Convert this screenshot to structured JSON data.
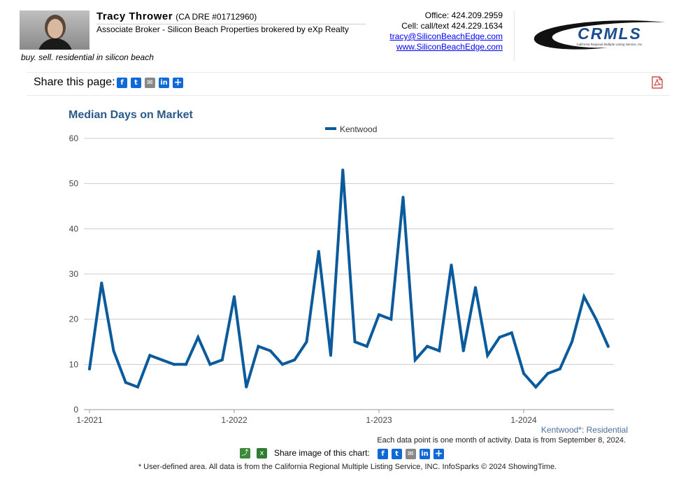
{
  "agent": {
    "name": "Tracy Thrower",
    "license": "(CA DRE #01712960)",
    "title": "Associate Broker - Silicon Beach Properties brokered by eXp Realty",
    "tagline": "buy. sell. residential in silicon beach",
    "office": "Office: 424.209.2959",
    "cell": "Cell: call/text 424.229.1634",
    "email": "tracy@SiliconBeachEdge.com",
    "website": "www.SiliconBeachEdge.com"
  },
  "logo": {
    "text": "CRMLS",
    "subtext": "California Regional Multiple Listing Service, Inc.",
    "color": "#1a4d8f"
  },
  "share": {
    "label": "Share this page:",
    "icons": [
      "facebook-icon",
      "twitter-icon",
      "email-icon",
      "linkedin-icon",
      "share-plus-icon"
    ]
  },
  "chart_data": {
    "type": "line",
    "title": "Median Days on Market",
    "series": [
      {
        "name": "Kentwood",
        "color": "#0a5a9c",
        "values": [
          9,
          28,
          13,
          6,
          5,
          12,
          11,
          10,
          10,
          16,
          10,
          11,
          25,
          5,
          14,
          13,
          10,
          11,
          15,
          35,
          12,
          53,
          15,
          14,
          21,
          20,
          47,
          11,
          14,
          13,
          32,
          13,
          27,
          12,
          16,
          17,
          8,
          5,
          8,
          9,
          15,
          25,
          20,
          14
        ]
      }
    ],
    "x_start": "1-2021",
    "x_ticks": [
      "1-2021",
      "1-2022",
      "1-2023",
      "1-2024"
    ],
    "y_ticks": [
      0,
      10,
      20,
      30,
      40,
      50,
      60
    ],
    "ylim": [
      0,
      60
    ],
    "grid": true,
    "legend_position": "top-center"
  },
  "footer": {
    "area_label": "Kentwood*: Residential",
    "note": "Each data point is one month of activity. Data is from September 8, 2024.",
    "share_image_label": "Share image of this chart:",
    "disclaimer": "* User-defined area. All data is from the California Regional Multiple Listing Service, INC. InfoSparks © 2024 ShowingTime."
  }
}
